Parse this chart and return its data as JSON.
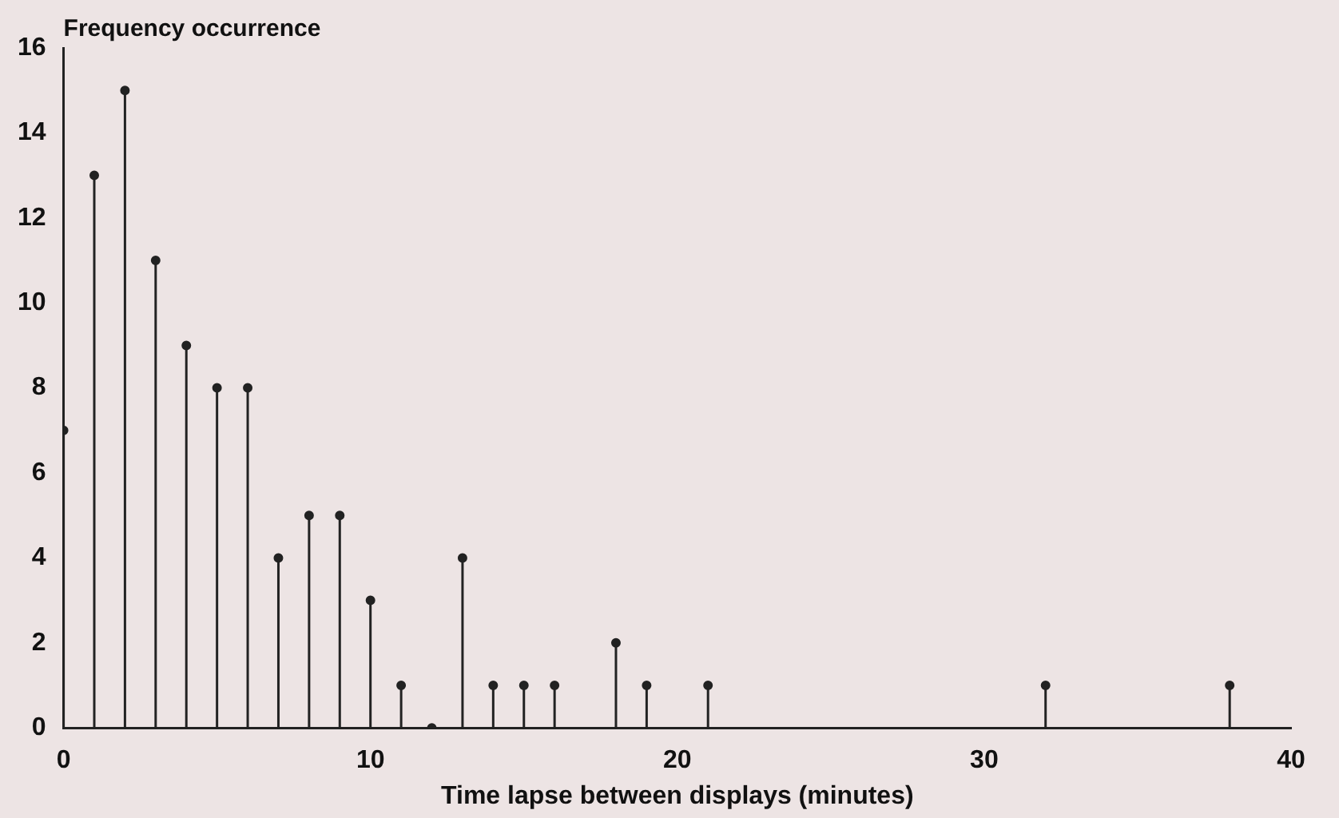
{
  "chart_data": {
    "type": "lollipop",
    "ylabel": "Frequency occurrence",
    "xlabel": "Time lapse between displays (minutes)",
    "x": [
      0,
      1,
      2,
      3,
      4,
      5,
      6,
      7,
      8,
      9,
      10,
      11,
      12,
      13,
      14,
      15,
      16,
      18,
      19,
      21,
      32,
      38
    ],
    "values": [
      7,
      13,
      15,
      11,
      9,
      8,
      8,
      4,
      5,
      5,
      3,
      1,
      0,
      4,
      1,
      1,
      1,
      2,
      1,
      1,
      1,
      1
    ],
    "color": "#222222",
    "marker": "circle",
    "xlim": [
      0,
      40
    ],
    "xticks": [
      0,
      10,
      20,
      30,
      40
    ],
    "ylim": [
      0,
      16
    ],
    "yticks": [
      0,
      2,
      4,
      6,
      8,
      10,
      12,
      14,
      16
    ],
    "legend": false
  }
}
